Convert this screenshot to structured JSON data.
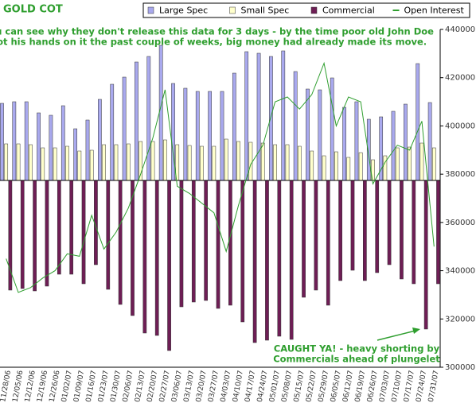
{
  "chart_data": {
    "type": "bar",
    "title": "GOLD COT",
    "annotations": [
      "You can see why they don't release this data for 3 days - by the time poor old John Doe",
      "got his hands on it the past couple of weeks, big money had already made its move."
    ],
    "callout": [
      "CAUGHT YA! - heavy shorting by",
      "Commercials ahead of plungelet"
    ],
    "categories": [
      "11/28/06",
      "12/05/06",
      "12/12/06",
      "12/19/06",
      "12/26/06",
      "01/02/07",
      "01/09/07",
      "01/16/07",
      "01/23/07",
      "01/30/07",
      "02/06/07",
      "02/13/07",
      "02/20/07",
      "02/27/07",
      "03/06/07",
      "03/13/07",
      "03/20/07",
      "03/27/07",
      "04/03/07",
      "04/10/07",
      "04/17/07",
      "04/24/07",
      "05/01/07",
      "05/08/07",
      "05/15/07",
      "05/22/07",
      "05/29/07",
      "06/05/07",
      "06/12/07",
      "06/19/07",
      "06/26/07",
      "07/03/07",
      "07/10/07",
      "07/17/07",
      "07/24/07",
      "07/31/07"
    ],
    "ylim": [
      -293750,
      237500
    ],
    "y2lim": [
      300000,
      440000
    ],
    "y2ticks": [
      300000,
      320000,
      340000,
      360000,
      380000,
      400000,
      420000,
      440000
    ],
    "series": [
      {
        "name": "Large Spec",
        "color": "#a9a9ee",
        "values": [
          121250,
          123750,
          123750,
          106250,
          102500,
          117500,
          81250,
          95000,
          127500,
          151250,
          162500,
          186250,
          195000,
          212500,
          152500,
          145000,
          140000,
          140000,
          140000,
          168750,
          202500,
          200000,
          195000,
          203750,
          171250,
          143750,
          142500,
          161250,
          115000,
          123750,
          96250,
          100000,
          108750,
          120000,
          183750,
          122500
        ]
      },
      {
        "name": "Small Spec",
        "color": "#ffffcc",
        "values": [
          57500,
          57500,
          56250,
          51250,
          51250,
          53750,
          46250,
          47500,
          56250,
          56250,
          57500,
          61250,
          61250,
          63750,
          56250,
          55000,
          53750,
          53750,
          65000,
          61250,
          60000,
          58750,
          56250,
          56250,
          53750,
          46250,
          38750,
          45000,
          36250,
          43750,
          32500,
          38750,
          51250,
          52500,
          58750,
          51250
        ]
      },
      {
        "name": "Commercial",
        "color": "#6e1e55",
        "values": [
          -172500,
          -170000,
          -173750,
          -166250,
          -147500,
          -147500,
          -162500,
          -132500,
          -171250,
          -195000,
          -212500,
          -240000,
          -243750,
          -267500,
          -198750,
          -191250,
          -188750,
          -201250,
          -196250,
          -222500,
          -255000,
          -251250,
          -245000,
          -250000,
          -183750,
          -172500,
          -196250,
          -157500,
          -141250,
          -157500,
          -145000,
          -132500,
          -155000,
          -162500,
          -233750,
          -162500
        ]
      },
      {
        "name": "Open Interest",
        "color": "#2e9e2e",
        "type": "line",
        "axis": "y2",
        "values": [
          345000,
          331000,
          333000,
          337000,
          340000,
          347000,
          346000,
          363000,
          349000,
          356000,
          366000,
          380000,
          395000,
          415000,
          375000,
          372000,
          368000,
          364000,
          348000,
          367000,
          384000,
          392000,
          410000,
          412000,
          407000,
          413000,
          426000,
          400000,
          412000,
          410000,
          376000,
          385000,
          392000,
          390000,
          402000,
          350000
        ]
      }
    ]
  }
}
